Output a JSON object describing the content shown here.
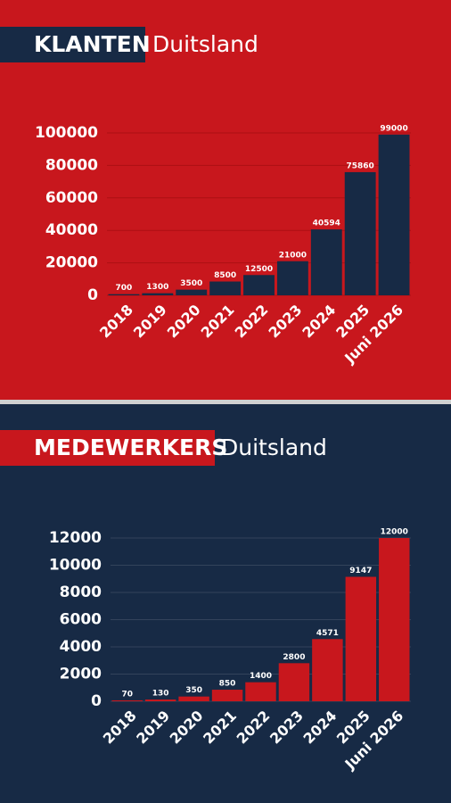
{
  "chart_data": [
    {
      "type": "bar",
      "title": "KLANTEN",
      "subtitle": "Duitsland",
      "categories": [
        "2018",
        "2019",
        "2020",
        "2021",
        "2022",
        "2023",
        "2024",
        "2025",
        "Juni 2026"
      ],
      "values": [
        700,
        1300,
        3500,
        8500,
        12500,
        21000,
        40594,
        75860,
        99000
      ],
      "color": "#172a45",
      "ylim": [
        0,
        100000
      ],
      "yticks": [
        0,
        20000,
        40000,
        60000,
        80000,
        100000
      ],
      "grid": true
    },
    {
      "type": "bar",
      "title": "MEDEWERKERS",
      "subtitle": "Duitsland",
      "categories": [
        "2018",
        "2019",
        "2020",
        "2021",
        "2022",
        "2023",
        "2024",
        "2025",
        "Juni 2026"
      ],
      "values": [
        70,
        130,
        350,
        850,
        1400,
        2800,
        4571,
        9147,
        12000
      ],
      "color": "#c8171d",
      "ylim": [
        0,
        12000
      ],
      "yticks": [
        0,
        2000,
        4000,
        6000,
        8000,
        10000,
        12000
      ],
      "grid": true
    }
  ]
}
